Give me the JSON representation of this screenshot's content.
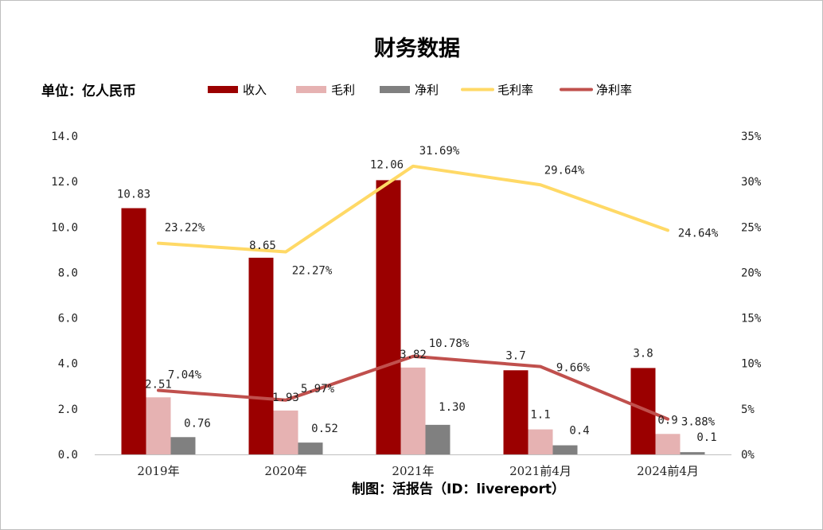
{
  "chart_data": {
    "type": "bar",
    "title": "财务数据",
    "unit_label": "单位：亿人民币",
    "credit": "制图：活报告（ID：livereport）",
    "categories": [
      "2019年",
      "2020年",
      "2021年",
      "2021前4月",
      "2024前4月"
    ],
    "series": [
      {
        "name": "收入",
        "kind": "bar",
        "axis": "left",
        "color": "#9b0000",
        "values": [
          10.83,
          8.65,
          12.06,
          3.7,
          3.8
        ],
        "labels": [
          "10.83",
          "8.65",
          "12.06",
          "3.7",
          "3.8"
        ]
      },
      {
        "name": "毛利",
        "kind": "bar",
        "axis": "left",
        "color": "#e6b2b2",
        "values": [
          2.51,
          1.93,
          3.82,
          1.1,
          0.9
        ],
        "labels": [
          "2.51",
          "1.93",
          "3.82",
          "1.1",
          "0.9"
        ]
      },
      {
        "name": "净利",
        "kind": "bar",
        "axis": "left",
        "color": "#808080",
        "values": [
          0.76,
          0.52,
          1.3,
          0.4,
          0.1
        ],
        "labels": [
          "0.76",
          "0.52",
          "1.30",
          "0.4",
          "0.1"
        ]
      },
      {
        "name": "毛利率",
        "kind": "line",
        "axis": "right",
        "color": "#ffd966",
        "values": [
          23.22,
          22.27,
          31.69,
          29.64,
          24.64
        ],
        "labels": [
          "23.22%",
          "22.27%",
          "31.69%",
          "29.64%",
          "24.64%"
        ]
      },
      {
        "name": "净利率",
        "kind": "line",
        "axis": "right",
        "color": "#c0504d",
        "values": [
          7.04,
          5.97,
          10.78,
          9.66,
          3.88
        ],
        "labels": [
          "7.04%",
          "5.97%",
          "10.78%",
          "9.66%",
          "3.88%"
        ]
      }
    ],
    "y_left": {
      "min": 0,
      "max": 14,
      "ticks": [
        "0.0",
        "2.0",
        "4.0",
        "6.0",
        "8.0",
        "10.0",
        "12.0",
        "14.0"
      ]
    },
    "y_right": {
      "min": 0,
      "max": 35,
      "unit": "%",
      "ticks": [
        "0%",
        "5%",
        "10%",
        "15%",
        "20%",
        "25%",
        "30%",
        "35%"
      ]
    },
    "legend_position": "top",
    "grid": false
  }
}
